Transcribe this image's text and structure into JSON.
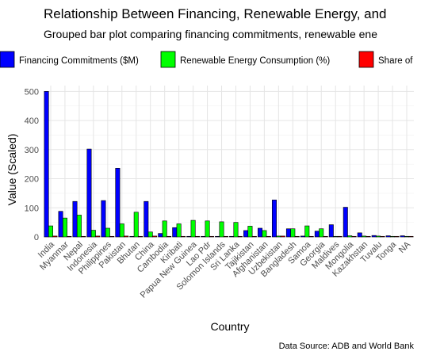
{
  "chart_data": {
    "type": "bar",
    "title": "Relationship Between Financing, Renewable Energy, and",
    "subtitle": "Grouped bar plot comparing financing commitments, renewable ene",
    "xlabel": "Country",
    "ylabel": "Value (Scaled)",
    "caption": "Data Source: ADB and World Bank",
    "ylim": [
      0,
      520
    ],
    "yticks": [
      0,
      100,
      200,
      300,
      400,
      500
    ],
    "grid": true,
    "legend_position": "top",
    "categories": [
      "India",
      "Myanmar",
      "Nepal",
      "Indonesia",
      "Philippines",
      "Pakistan",
      "Bhutan",
      "China",
      "Cambodia",
      "Kiribati",
      "Papua New Guinea",
      "Lao Pdr",
      "Solomon Islands",
      "Sri Lanka",
      "Tajikistan",
      "Afghanistan",
      "Uzbekistan",
      "Bangladesh",
      "Samoa",
      "Georgia",
      "Maldives",
      "Mongolia",
      "Kazakhstan",
      "Tuvalu",
      "Tonga",
      "NA"
    ],
    "series": [
      {
        "name": "Financing Commitments ($M)",
        "color": "#0000ff",
        "values": [
          500,
          88,
          122,
          302,
          125,
          236,
          2,
          122,
          12,
          32,
          2,
          2,
          2,
          2,
          22,
          30,
          127,
          28,
          3,
          20,
          42,
          102,
          14,
          5,
          4,
          4
        ]
      },
      {
        "name": "Renewable Energy Consumption (%)",
        "color": "#00ff00",
        "values": [
          38,
          65,
          75,
          23,
          30,
          45,
          85,
          17,
          55,
          45,
          57,
          55,
          52,
          50,
          37,
          22,
          3,
          28,
          38,
          28,
          2,
          4,
          3,
          3,
          2,
          2
        ]
      },
      {
        "name": "Share of",
        "color": "#ff0000",
        "values": [
          3,
          2,
          2,
          3,
          2,
          3,
          2,
          3,
          2,
          2,
          2,
          2,
          2,
          2,
          2,
          2,
          3,
          2,
          2,
          2,
          2,
          2,
          2,
          2,
          2,
          2
        ]
      }
    ]
  }
}
